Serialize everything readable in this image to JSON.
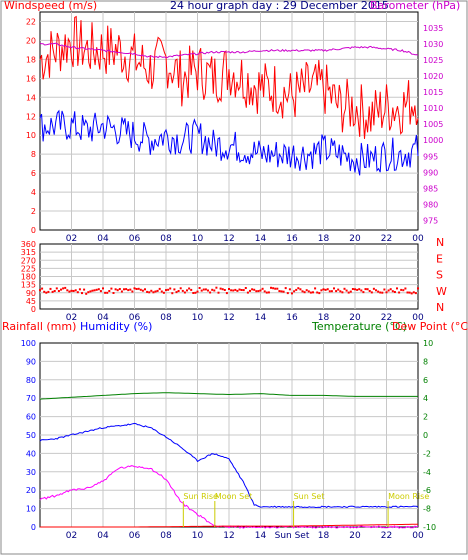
{
  "chart_data": [
    {
      "type": "line",
      "title": "24 hour graph day : 29 December 2015",
      "ylabel": "Windspeed (m/s)",
      "y2label": "Barometer (hPa)",
      "x_ticks": [
        "02",
        "04",
        "06",
        "08",
        "10",
        "12",
        "14",
        "16",
        "18",
        "20",
        "22",
        "00"
      ],
      "ylim": [
        0,
        23
      ],
      "y_ticks": [
        0,
        2,
        4,
        6,
        8,
        10,
        12,
        14,
        16,
        18,
        20,
        22
      ],
      "y2lim": [
        972,
        1040
      ],
      "y2_ticks": [
        975,
        980,
        985,
        990,
        995,
        1000,
        1005,
        1010,
        1015,
        1020,
        1025,
        1030,
        1035
      ],
      "grid": true,
      "colors": {
        "gust": "#ff0000",
        "speed": "#0000ff",
        "barometer": "#cc00cc"
      },
      "series": [
        {
          "axis": "left",
          "x": [
            0,
            1,
            2,
            3,
            4,
            5,
            6,
            7,
            8,
            9,
            10,
            11,
            12,
            13,
            14,
            15,
            16,
            17,
            18,
            19,
            20,
            21,
            22,
            23,
            24
          ],
          "values": [
            18,
            19,
            20,
            19,
            19,
            19,
            18,
            17,
            18,
            16,
            17,
            16,
            17,
            16,
            15,
            15,
            14,
            15,
            15,
            13,
            13,
            12,
            13,
            13,
            14
          ]
        },
        {
          "axis": "left",
          "x": [
            0,
            1,
            2,
            3,
            4,
            5,
            6,
            7,
            8,
            9,
            10,
            11,
            12,
            13,
            14,
            15,
            16,
            17,
            18,
            19,
            20,
            21,
            22,
            23,
            24
          ],
          "values": [
            11,
            11,
            11,
            10.5,
            11,
            10.5,
            10,
            9.5,
            10,
            9.5,
            10,
            9,
            9,
            8.5,
            8,
            8,
            8,
            8,
            8.5,
            8,
            7.5,
            7.5,
            8,
            8,
            8.5
          ]
        },
        {
          "axis": "right",
          "x": [
            0,
            1,
            2,
            3,
            4,
            5,
            6,
            7,
            8,
            9,
            10,
            11,
            12,
            13,
            14,
            15,
            16,
            17,
            18,
            19,
            20,
            21,
            22,
            23,
            24
          ],
          "values": [
            1030,
            1030,
            1029,
            1028.5,
            1028,
            1027.5,
            1027,
            1026,
            1026,
            1026.5,
            1027,
            1027.5,
            1027.5,
            1027.5,
            1028,
            1028,
            1028,
            1028,
            1028,
            1028.5,
            1029,
            1029,
            1028.5,
            1028,
            1026.5
          ]
        }
      ]
    },
    {
      "type": "scatter",
      "ylabel_right": [
        "N",
        "W",
        "S",
        "E",
        "N"
      ],
      "x_ticks": [
        "02",
        "04",
        "06",
        "08",
        "10",
        "12",
        "14",
        "16",
        "18",
        "20",
        "22",
        "00"
      ],
      "ylim": [
        0,
        360
      ],
      "y_ticks": [
        0,
        45,
        90,
        135,
        180,
        225,
        270,
        315,
        360
      ],
      "grid": true,
      "colors": {
        "direction": "#ff0000"
      },
      "series": [
        {
          "x": [
            0,
            1,
            2,
            3,
            4,
            5,
            6,
            7,
            8,
            9,
            10,
            11,
            12,
            13,
            14,
            15,
            16,
            17,
            18,
            19,
            20,
            21,
            22,
            23,
            24
          ],
          "values": [
            100,
            105,
            102,
            98,
            104,
            100,
            103,
            101,
            99,
            105,
            102,
            104,
            100,
            103,
            106,
            102,
            101,
            104,
            100,
            103,
            99,
            105,
            102,
            101,
            100
          ]
        }
      ]
    },
    {
      "type": "line",
      "ylabel": "Rainfall (mm)",
      "ylabel2": "Humidity (%)",
      "y2label": "Temperature (°C)",
      "y3label": "Dew Point (°C)",
      "x_ticks": [
        "02",
        "04",
        "06",
        "08",
        "10",
        "12",
        "14",
        "Sun Set",
        "18",
        "20",
        "22",
        "00"
      ],
      "ylim": [
        0,
        100
      ],
      "y_ticks": [
        0,
        10,
        20,
        30,
        40,
        50,
        60,
        70,
        80,
        90,
        100
      ],
      "y2lim": [
        -10,
        10
      ],
      "y2_ticks": [
        -10,
        -8,
        -6,
        -4,
        -2,
        0,
        2,
        4,
        6,
        8,
        10
      ],
      "grid": true,
      "colors": {
        "rain": "#0000ff",
        "humidity": "#ff00ff",
        "temperature": "#008000",
        "dewpoint": "#ff0000",
        "annotation": "#cccc00"
      },
      "annotations": [
        {
          "text": "Sun Rise",
          "x": 9.1
        },
        {
          "text": "Moon Set",
          "x": 11.1
        },
        {
          "text": "Sun Set",
          "x": 16.1
        },
        {
          "text": "Moon Rise",
          "x": 22.1
        }
      ],
      "series": [
        {
          "axis": "left",
          "x": [
            0,
            1,
            2,
            3,
            4,
            5,
            6,
            7,
            8,
            9,
            10,
            11,
            12,
            13,
            13.6,
            14,
            16,
            18,
            20,
            22,
            24
          ],
          "values": [
            47,
            48,
            50,
            52,
            54,
            55,
            56,
            54,
            49,
            43,
            36,
            40,
            37,
            23,
            12,
            11,
            11,
            11,
            11,
            11,
            11
          ]
        },
        {
          "axis": "left",
          "x": [
            0,
            1,
            2,
            3,
            4,
            5,
            6,
            7,
            8,
            9,
            10,
            10.5,
            11,
            12,
            24
          ],
          "values": [
            15,
            17,
            20,
            21,
            25,
            32,
            33,
            32,
            26,
            13,
            7,
            4,
            1,
            0,
            0
          ]
        },
        {
          "axis": "right",
          "x": [
            0,
            2,
            4,
            6,
            8,
            10,
            12,
            14,
            16,
            18,
            20,
            22,
            24
          ],
          "values": [
            3.9,
            4.1,
            4.3,
            4.5,
            4.6,
            4.5,
            4.4,
            4.5,
            4.3,
            4.3,
            4.2,
            4.2,
            4.2
          ]
        },
        {
          "axis": "right",
          "x": [
            0,
            6,
            12,
            16,
            20,
            24
          ],
          "values": [
            -10,
            -10,
            -9.9,
            -9.9,
            -9.8,
            -9.7
          ]
        }
      ]
    }
  ]
}
